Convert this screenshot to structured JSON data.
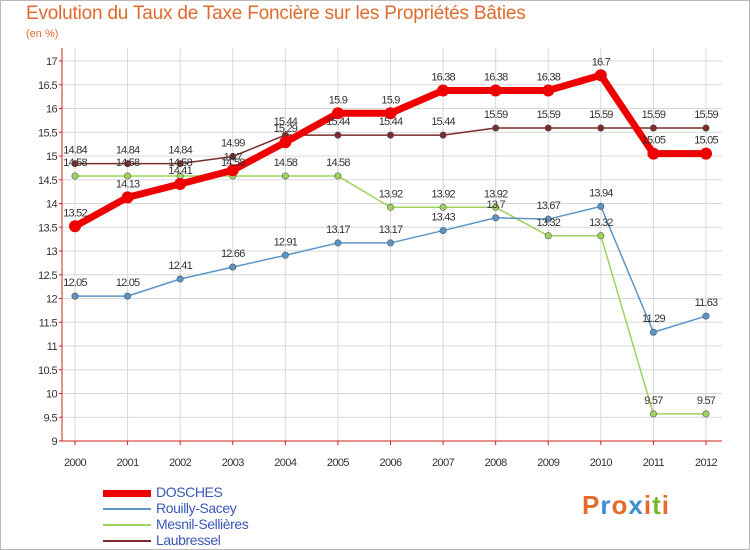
{
  "title": "Evolution du Taux de Taxe Foncière sur les Propriétés Bâties",
  "unit_label": "(en %)",
  "logo": {
    "text": "Proxiti",
    "letters": [
      "P",
      "r",
      "o",
      "x",
      "i",
      "t",
      "i"
    ],
    "colors": [
      "#e46b2c",
      "#3c8fd1",
      "#e46b2c",
      "#3c8fd1",
      "#e46b2c",
      "#7ab52f",
      "#e46b2c"
    ]
  },
  "colors": {
    "title": "#e06a2e",
    "axis": "#cc2222",
    "grid": "#d8d8d8",
    "legend_text": "#3a57b6"
  },
  "chart_data": {
    "type": "line",
    "title": "Evolution du Taux de Taxe Foncière sur les Propriétés Bâties",
    "ylabel": "(en %)",
    "xlabel": "",
    "ylim": [
      9,
      17
    ],
    "yticks": [
      "9",
      "9.5",
      "10",
      "10.5",
      "11",
      "11.5",
      "12",
      "12.5",
      "13",
      "13.5",
      "14",
      "14.5",
      "15",
      "15.5",
      "16",
      "16.5",
      "17"
    ],
    "categories": [
      "2000",
      "2001",
      "2002",
      "2003",
      "2004",
      "2005",
      "2006",
      "2007",
      "2008",
      "2009",
      "2010",
      "2011",
      "2012"
    ],
    "grid": true,
    "legend_position": "bottom-left",
    "series": [
      {
        "name": "DOSCHES",
        "color": "#ee0000",
        "values": [
          13.52,
          14.13,
          14.41,
          14.7,
          15.29,
          15.9,
          15.9,
          16.38,
          16.38,
          16.38,
          16.7,
          15.05,
          15.05
        ],
        "labels": [
          "13.52",
          "14.13",
          "14.41",
          "14.7",
          "15.29",
          "15.9",
          "15.9",
          "16.38",
          "16.38",
          "16.38",
          "16.7",
          "15.05",
          "15.05"
        ]
      },
      {
        "name": "Rouilly-Sacey",
        "color": "#5b95c8",
        "values": [
          12.05,
          12.05,
          12.41,
          12.66,
          12.91,
          13.17,
          13.17,
          13.43,
          13.7,
          13.67,
          13.94,
          11.29,
          11.63
        ],
        "labels": [
          "12.05",
          "12.05",
          "12.41",
          "12.66",
          "12.91",
          "13.17",
          "13.17",
          "13.43",
          "13.7",
          "13.67",
          "13.94",
          "11.29",
          "11.63"
        ]
      },
      {
        "name": "Mesnil-Sellières",
        "color": "#9fd35d",
        "values": [
          14.58,
          14.58,
          14.58,
          14.58,
          14.58,
          14.58,
          13.92,
          13.92,
          13.92,
          13.32,
          13.32,
          9.57,
          9.57
        ],
        "labels": [
          "14.58",
          "14.58",
          "14.58",
          "14.58",
          "14.58",
          "14.58",
          "13.92",
          "13.92",
          "13.92",
          "13.32",
          "13.32",
          "9.57",
          "9.57"
        ]
      },
      {
        "name": "Laubressel",
        "color": "#7d2c2c",
        "values": [
          14.84,
          14.84,
          14.84,
          14.99,
          15.44,
          15.44,
          15.44,
          15.44,
          15.59,
          15.59,
          15.59,
          15.59,
          15.59
        ],
        "labels": [
          "14.84",
          "14.84",
          "14.84",
          "14.99",
          "15.44",
          "15.44",
          "15.44",
          "15.44",
          "15.59",
          "15.59",
          "15.59",
          "15.59",
          "15.59"
        ]
      }
    ]
  }
}
